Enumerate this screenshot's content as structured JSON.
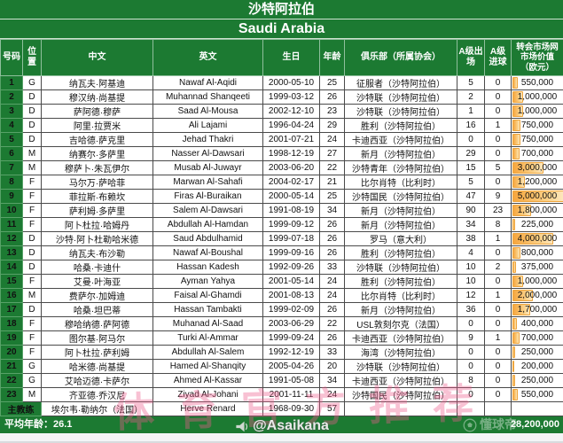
{
  "page": {
    "title_zh": "沙特阿拉伯",
    "title_en": "Saudi Arabia"
  },
  "columns": {
    "number": "号码",
    "position": "位置",
    "name_zh": "中文",
    "name_en": "英文",
    "birthday": "生日",
    "age": "年龄",
    "club": "俱乐部（所属协会）",
    "caps": "A级出场",
    "goals": "A级进球",
    "value": "转会市场网市场价值（欧元）"
  },
  "value_bar_max": "5,000,000",
  "players": [
    {
      "no": "1",
      "pos": "G",
      "zh": "纳瓦夫·阿基迪",
      "en": "Nawaf Al-Aqidi",
      "dob": "2000-05-10",
      "age": "25",
      "club": "征服者（沙特阿拉伯）",
      "caps": "5",
      "goals": "0",
      "value": "550,000"
    },
    {
      "no": "2",
      "pos": "D",
      "zh": "穆汉纳·尚基提",
      "en": "Muhannad Shanqeeti",
      "dob": "1999-03-12",
      "age": "26",
      "club": "沙特联（沙特阿拉伯）",
      "caps": "2",
      "goals": "0",
      "value": "1,000,000"
    },
    {
      "no": "3",
      "pos": "D",
      "zh": "萨阿德·穆萨",
      "en": "Saad Al-Mousa",
      "dob": "2002-12-10",
      "age": "23",
      "club": "沙特联（沙特阿拉伯）",
      "caps": "1",
      "goals": "0",
      "value": "1,000,000"
    },
    {
      "no": "4",
      "pos": "D",
      "zh": "阿里·拉贾米",
      "en": "Ali Lajami",
      "dob": "1996-04-24",
      "age": "29",
      "club": "胜利（沙特阿拉伯）",
      "caps": "16",
      "goals": "1",
      "value": "750,000"
    },
    {
      "no": "5",
      "pos": "D",
      "zh": "吉哈德·萨克里",
      "en": "Jehad Thakri",
      "dob": "2001-07-21",
      "age": "24",
      "club": "卡迪西亚（沙特阿拉伯）",
      "caps": "0",
      "goals": "0",
      "value": "750,000"
    },
    {
      "no": "6",
      "pos": "M",
      "zh": "纳赛尔·多萨里",
      "en": "Nasser Al-Dawsari",
      "dob": "1998-12-19",
      "age": "27",
      "club": "新月（沙特阿拉伯）",
      "caps": "29",
      "goals": "0",
      "value": "700,000"
    },
    {
      "no": "7",
      "pos": "M",
      "zh": "穆萨卜·朱瓦伊尔",
      "en": "Musab Al-Juwayr",
      "dob": "2003-06-20",
      "age": "22",
      "club": "沙特青年（沙特阿拉伯）",
      "caps": "15",
      "goals": "5",
      "value": "3,000,000"
    },
    {
      "no": "8",
      "pos": "F",
      "zh": "马尔万·萨哈菲",
      "en": "Marwan Al-Sahafi",
      "dob": "2004-02-17",
      "age": "21",
      "club": "比尔肖特（比利时）",
      "caps": "5",
      "goals": "0",
      "value": "1,200,000"
    },
    {
      "no": "9",
      "pos": "F",
      "zh": "菲拉斯·布赖坎",
      "en": "Firas Al-Buraikan",
      "dob": "2000-05-14",
      "age": "25",
      "club": "沙特国民（沙特阿拉伯）",
      "caps": "47",
      "goals": "9",
      "value": "5,000,000"
    },
    {
      "no": "10",
      "pos": "F",
      "zh": "萨利姆·多萨里",
      "en": "Salem Al-Dawsari",
      "dob": "1991-08-19",
      "age": "34",
      "club": "新月（沙特阿拉伯）",
      "caps": "90",
      "goals": "23",
      "value": "1,800,000"
    },
    {
      "no": "11",
      "pos": "F",
      "zh": "阿卜杜拉·哈姆丹",
      "en": "Abdullah Al-Hamdan",
      "dob": "1999-09-12",
      "age": "26",
      "club": "新月（沙特阿拉伯）",
      "caps": "34",
      "goals": "8",
      "value": "225,000"
    },
    {
      "no": "12",
      "pos": "D",
      "zh": "沙特·阿卜杜勒哈米德",
      "en": "Saud Abdulhamid",
      "dob": "1999-07-18",
      "age": "26",
      "club": "罗马（意大利）",
      "caps": "38",
      "goals": "1",
      "value": "4,000,000"
    },
    {
      "no": "13",
      "pos": "D",
      "zh": "纳瓦夫·布沙勒",
      "en": "Nawaf Al-Boushal",
      "dob": "1999-09-16",
      "age": "26",
      "club": "胜利（沙特阿拉伯）",
      "caps": "4",
      "goals": "0",
      "value": "800,000"
    },
    {
      "no": "14",
      "pos": "D",
      "zh": "哈桑·卡迪什",
      "en": "Hassan Kadesh",
      "dob": "1992-09-26",
      "age": "33",
      "club": "沙特联（沙特阿拉伯）",
      "caps": "10",
      "goals": "2",
      "value": "375,000"
    },
    {
      "no": "15",
      "pos": "F",
      "zh": "艾曼·叶海亚",
      "en": "Ayman Yahya",
      "dob": "2001-05-14",
      "age": "24",
      "club": "胜利（沙特阿拉伯）",
      "caps": "10",
      "goals": "0",
      "value": "1,000,000"
    },
    {
      "no": "16",
      "pos": "M",
      "zh": "费萨尔·加姆迪",
      "en": "Faisal Al-Ghamdi",
      "dob": "2001-08-13",
      "age": "24",
      "club": "比尔肖特（比利时）",
      "caps": "12",
      "goals": "1",
      "value": "2,000,000"
    },
    {
      "no": "17",
      "pos": "D",
      "zh": "哈桑·坦巴蒂",
      "en": "Hassan Tambakti",
      "dob": "1999-02-09",
      "age": "26",
      "club": "新月（沙特阿拉伯）",
      "caps": "36",
      "goals": "0",
      "value": "1,700,000"
    },
    {
      "no": "18",
      "pos": "F",
      "zh": "穆哈纳德·萨阿德",
      "en": "Muhanad Al-Saad",
      "dob": "2003-06-29",
      "age": "22",
      "club": "USL敦刻尔克（法国）",
      "caps": "0",
      "goals": "0",
      "value": "400,000"
    },
    {
      "no": "19",
      "pos": "F",
      "zh": "图尔基·阿马尔",
      "en": "Turki Al-Ammar",
      "dob": "1999-09-24",
      "age": "26",
      "club": "卡迪西亚（沙特阿拉伯）",
      "caps": "9",
      "goals": "1",
      "value": "700,000"
    },
    {
      "no": "20",
      "pos": "F",
      "zh": "阿卜杜拉·萨利姆",
      "en": "Abdullah Al-Salem",
      "dob": "1992-12-19",
      "age": "33",
      "club": "海湾（沙特阿拉伯）",
      "caps": "0",
      "goals": "0",
      "value": "250,000"
    },
    {
      "no": "21",
      "pos": "G",
      "zh": "哈米德·尚基提",
      "en": "Hamed Al-Shanqity",
      "dob": "2005-04-26",
      "age": "20",
      "club": "沙特联（沙特阿拉伯）",
      "caps": "0",
      "goals": "0",
      "value": "200,000"
    },
    {
      "no": "22",
      "pos": "G",
      "zh": "艾哈迈德·卡萨尔",
      "en": "Ahmed Al-Kassar",
      "dob": "1991-05-08",
      "age": "34",
      "club": "卡迪西亚（沙特阿拉伯）",
      "caps": "8",
      "goals": "0",
      "value": "250,000"
    },
    {
      "no": "23",
      "pos": "M",
      "zh": "齐亚德·乔汉尼",
      "en": "Ziyad Al-Johani",
      "dob": "2001-11-11",
      "age": "24",
      "club": "沙特国民（沙特阿拉伯）",
      "caps": "0",
      "goals": "0",
      "value": "550,000"
    }
  ],
  "coach": {
    "label": "主教练",
    "name_zh": "埃尔韦·勒纳尔（法国）",
    "name_en": "Herve Renard",
    "birthday": "1968-09-30",
    "age": "57"
  },
  "footer": {
    "average_age_label": "平均年龄：",
    "average_age": "26.1",
    "total_value": "28,200,000"
  },
  "watermarks": {
    "handle": "@Asaikana",
    "brand": "懂球帝",
    "pink_text": "体育官方推荐"
  },
  "colors": {
    "green": "#1c7a32",
    "bar_orange": "#f6a63e",
    "watermark_pink": "#ec5c8c"
  }
}
